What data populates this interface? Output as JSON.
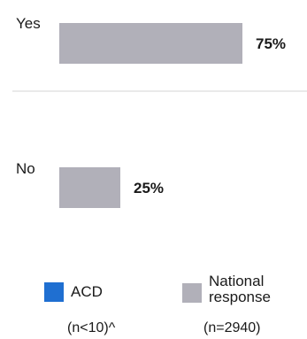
{
  "chart_data": {
    "type": "bar",
    "orientation": "horizontal",
    "categories": [
      "Yes",
      "No"
    ],
    "series": [
      {
        "name": "ACD",
        "values": [
          null,
          null
        ],
        "color": "#1f6fd1"
      },
      {
        "name": "National response",
        "values": [
          75,
          25
        ],
        "color": "#b1b0b9"
      }
    ],
    "data_labels": [
      "75%",
      "25%"
    ],
    "xlim": [
      0,
      100
    ],
    "grid": false,
    "legend_position": "bottom",
    "legend": [
      {
        "label": "ACD",
        "note": "(n<10)^",
        "color": "#1f6fd1"
      },
      {
        "label": "National response",
        "note": "(n=2940)",
        "color": "#b1b0b9"
      }
    ]
  }
}
